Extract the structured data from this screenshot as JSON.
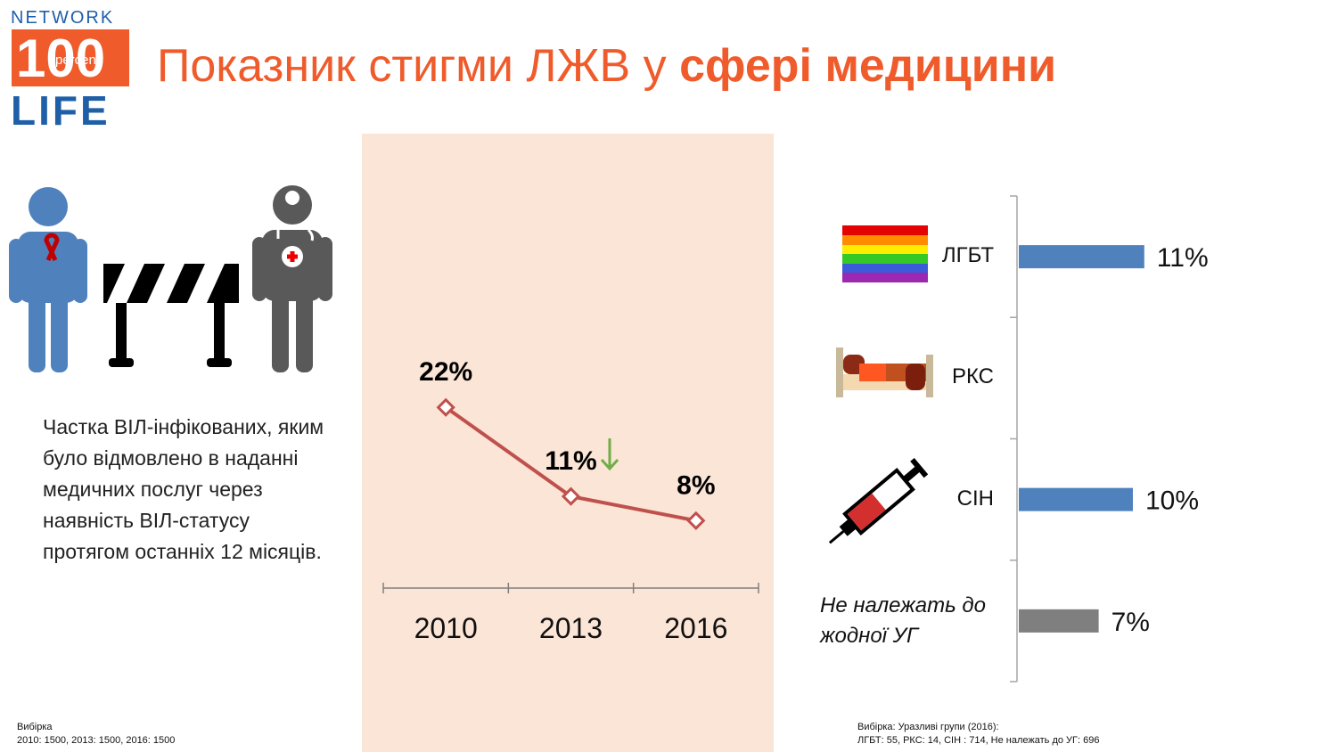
{
  "header": {
    "logo": {
      "top": "NETWORK",
      "number": "100",
      "word": "percent",
      "bottom": "LIFE"
    },
    "title": [
      "Показник стигми ЛЖВ у",
      "сфері медицини"
    ]
  },
  "description": "Частка ВІЛ-інфікованих, яким було відмовлено в наданні медичних послуг через наявність ВІЛ-статусу протягом останніх 12 місяців.",
  "notes": {
    "left": [
      "Вибірка",
      "2010: 1500, 2013: 1500, 2016: 1500"
    ],
    "right": [
      "Вибірка: Уразливі групи (2016):",
      "ЛГБТ: 55, РКС: 14, СІН : 714, Не належать до УГ: 696"
    ]
  },
  "chart_data": [
    {
      "type": "line",
      "categories": [
        "2010",
        "2013",
        "2016"
      ],
      "values": [
        22,
        11,
        8
      ],
      "value_labels": [
        "22%",
        "11%",
        "8%"
      ],
      "color": "#c0504d",
      "ylim": [
        0,
        25
      ]
    },
    {
      "type": "hbar",
      "categories": [
        "ЛГБТ",
        "РКС",
        "СІН",
        "Не належать до жодної УГ"
      ],
      "values": [
        11,
        null,
        10,
        7
      ],
      "value_labels": [
        "11%",
        null,
        "10%",
        "7%"
      ],
      "colors": [
        "#4f81bd",
        "#4f81bd",
        "#4f81bd",
        "#7f7f7f"
      ],
      "xlim": [
        0,
        20
      ]
    }
  ]
}
